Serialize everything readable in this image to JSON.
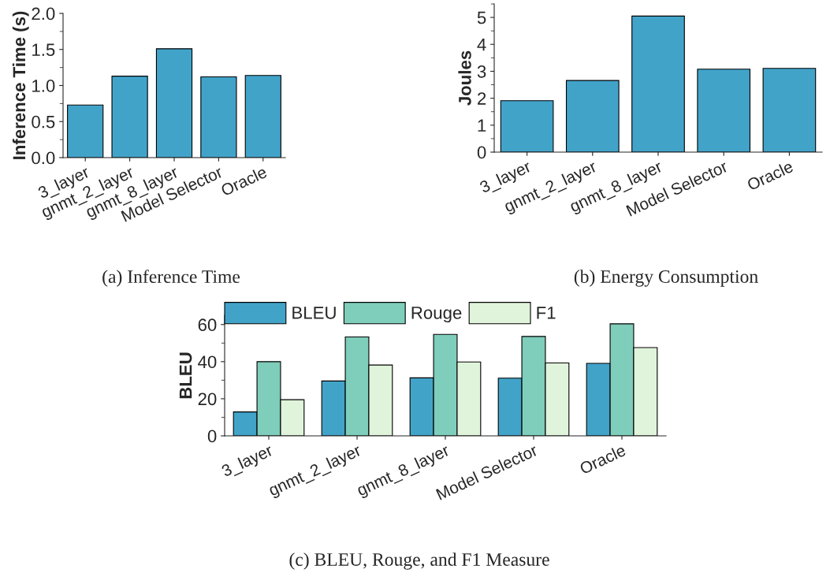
{
  "chart_data": [
    {
      "type": "bar",
      "ylabel": "Inference Time (s)",
      "categories": [
        "3_layer",
        "gnmt_2_layer",
        "gnmt_8_layer",
        "Model Selector",
        "Oracle"
      ],
      "values": [
        0.73,
        1.13,
        1.51,
        1.12,
        1.14
      ],
      "color": "#42a3c9",
      "ylim": [
        0,
        2.0
      ],
      "yticks": [
        {
          "value": 0,
          "label": "0.0"
        },
        0.5,
        {
          "value": 1,
          "label": "1.0"
        },
        1.5,
        {
          "value": 2,
          "label": "2.0"
        }
      ],
      "grid": false,
      "legend": false,
      "annotations": [
        "(a) Inference Time"
      ]
    },
    {
      "type": "bar",
      "ylabel": "Joules",
      "categories": [
        "3_layer",
        "gnmt_2_layer",
        "gnmt_8_layer",
        "Model Selector",
        "Oracle"
      ],
      "values": [
        1.91,
        2.66,
        5.05,
        3.08,
        3.11
      ],
      "color": "#42a3c9",
      "ylim": [
        0,
        5.5
      ],
      "yticks": [
        0,
        1,
        2,
        3,
        4,
        5
      ],
      "grid": false,
      "legend": false,
      "annotations": [
        "(b) Energy Consumption"
      ]
    },
    {
      "type": "bar",
      "ylabel": "BLEU",
      "categories": [
        "3_layer",
        "gnmt_2_layer",
        "gnmt_8_layer",
        "Model Selector",
        "Oracle"
      ],
      "series": [
        {
          "name": "BLEU",
          "color": "#42a3c9",
          "values": [
            12.9,
            29.6,
            31.3,
            31.1,
            39.1
          ]
        },
        {
          "name": "Rouge",
          "color": "#7fcdbb",
          "values": [
            40,
            53.3,
            54.7,
            53.6,
            60.4
          ]
        },
        {
          "name": "F1",
          "color": "#e0f3db",
          "values": [
            19.5,
            38.2,
            39.8,
            39.3,
            47.6
          ]
        }
      ],
      "ylim": [
        0,
        65
      ],
      "yticks": [
        0,
        20,
        40,
        60
      ],
      "grid": false,
      "legend": "top",
      "annotations": [
        "(c) BLEU, Rouge, and F1 Measure"
      ]
    }
  ]
}
